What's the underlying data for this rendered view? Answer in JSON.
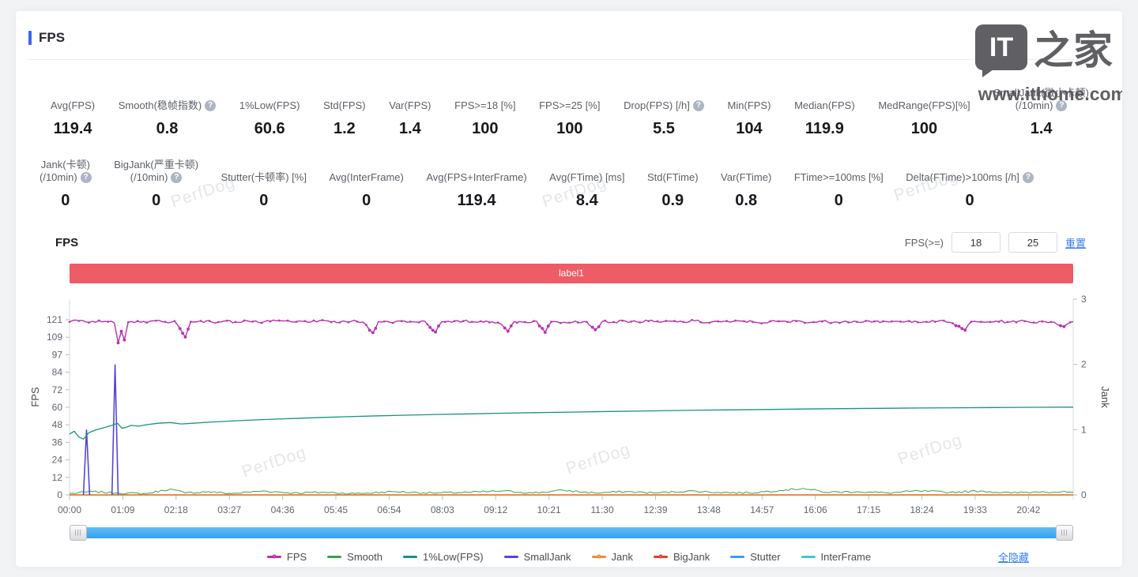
{
  "header": {
    "title": "FPS"
  },
  "stats": {
    "row1": [
      {
        "l1": "Avg(FPS)",
        "value": "119.4"
      },
      {
        "l1": "Smooth(稳帧指数)",
        "help": true,
        "value": "0.8"
      },
      {
        "l1": "1%Low(FPS)",
        "value": "60.6"
      },
      {
        "l1": "Std(FPS)",
        "value": "1.2"
      },
      {
        "l1": "Var(FPS)",
        "value": "1.4"
      },
      {
        "l1": "FPS>=18 [%]",
        "value": "100"
      },
      {
        "l1": "FPS>=25 [%]",
        "value": "100"
      },
      {
        "l1": "Drop(FPS) [/h]",
        "help": true,
        "value": "5.5"
      },
      {
        "l1": "Min(FPS)",
        "value": "104"
      },
      {
        "l1": "Median(FPS)",
        "value": "119.9"
      },
      {
        "l1": "MedRange(FPS)[%]",
        "value": "100"
      },
      {
        "l1": "SmallJank(微小卡顿)",
        "l2": "(/10min)",
        "help": true,
        "value": "1.4"
      }
    ],
    "row2": [
      {
        "l1": "Jank(卡顿)",
        "l2": "(/10min)",
        "help": true,
        "value": "0"
      },
      {
        "l1": "BigJank(严重卡顿)",
        "l2": "(/10min)",
        "help": true,
        "value": "0"
      },
      {
        "l1": "Stutter(卡顿率) [%]",
        "value": "0"
      },
      {
        "l1": "Avg(InterFrame)",
        "value": "0"
      },
      {
        "l1": "Avg(FPS+InterFrame)",
        "value": "119.4"
      },
      {
        "l1": "Avg(FTime) [ms]",
        "value": "8.4"
      },
      {
        "l1": "Std(FTime)",
        "value": "0.9"
      },
      {
        "l1": "Var(FTime)",
        "value": "0.8"
      },
      {
        "l1": "FTime>=100ms [%]",
        "value": "0"
      },
      {
        "l1": "Delta(FTime)>100ms [/h]",
        "help": true,
        "value": "0"
      }
    ]
  },
  "chart_section": {
    "title": "FPS",
    "filter_label": "FPS(>=)",
    "low": "18",
    "high": "25",
    "reset": "重置",
    "band_label": "label1",
    "band_color": "#ee5c66",
    "hide_all": "全隐藏"
  },
  "watermark": {
    "perfdog": "PerfDog",
    "site_box": "IT",
    "site_name": "之家",
    "site_url": "www.ithome.com"
  },
  "chart_data": {
    "type": "line",
    "title": "FPS",
    "x_max_seconds": 1300,
    "x_ticks": {
      "interval_seconds": 69,
      "labels": [
        "00:00",
        "01:09",
        "02:18",
        "03:27",
        "04:36",
        "05:45",
        "06:54",
        "08:03",
        "09:12",
        "10:21",
        "11:30",
        "12:39",
        "13:48",
        "14:57",
        "16:06",
        "17:15",
        "18:24",
        "19:33",
        "20:42"
      ]
    },
    "left_axis": {
      "label": "FPS",
      "min": 0,
      "max": 121,
      "ticks": [
        0,
        12,
        24,
        36,
        48,
        60,
        72,
        84,
        97,
        109,
        121
      ]
    },
    "right_axis": {
      "label": "Jank",
      "min": 0,
      "max": 3,
      "ticks": [
        0,
        1,
        2,
        3
      ]
    },
    "grid": false,
    "legend_position": "bottom",
    "series": [
      {
        "name": "Stutter",
        "color": "#3d9bf0",
        "axis": "right",
        "style": "line",
        "width": 1.2,
        "points": [
          [
            0,
            0
          ],
          [
            1300,
            0
          ]
        ]
      },
      {
        "name": "InterFrame",
        "color": "#41c7d2",
        "axis": "right",
        "style": "line",
        "width": 1.2,
        "points": [
          [
            0,
            0
          ],
          [
            1300,
            0
          ]
        ]
      },
      {
        "name": "BigJank",
        "color": "#e23c30",
        "axis": "right",
        "style": "line",
        "width": 1.2,
        "points": [
          [
            0,
            0
          ],
          [
            1300,
            0
          ]
        ]
      },
      {
        "name": "Jank",
        "color": "#f08a3e",
        "axis": "right",
        "style": "line",
        "width": 2,
        "points": [
          [
            0,
            0
          ],
          [
            1300,
            0
          ]
        ]
      },
      {
        "name": "Smooth",
        "color": "#3ea04a",
        "axis": "right",
        "style": "noisy",
        "noise": 0.015,
        "width": 1,
        "points": [
          [
            0,
            0.02
          ],
          [
            30,
            0.05
          ],
          [
            60,
            0.03
          ],
          [
            100,
            0.02
          ],
          [
            130,
            0.09
          ],
          [
            150,
            0.03
          ],
          [
            180,
            0.05
          ],
          [
            210,
            0.02
          ],
          [
            250,
            0.06
          ],
          [
            290,
            0.03
          ],
          [
            330,
            0.04
          ],
          [
            370,
            0.02
          ],
          [
            420,
            0.05
          ],
          [
            470,
            0.03
          ],
          [
            520,
            0.04
          ],
          [
            560,
            0.06
          ],
          [
            600,
            0.03
          ],
          [
            640,
            0.07
          ],
          [
            680,
            0.03
          ],
          [
            720,
            0.05
          ],
          [
            760,
            0.03
          ],
          [
            800,
            0.06
          ],
          [
            840,
            0.04
          ],
          [
            880,
            0.03
          ],
          [
            920,
            0.07
          ],
          [
            950,
            0.1
          ],
          [
            980,
            0.04
          ],
          [
            1020,
            0.05
          ],
          [
            1060,
            0.03
          ],
          [
            1100,
            0.06
          ],
          [
            1140,
            0.04
          ],
          [
            1180,
            0.06
          ],
          [
            1220,
            0.03
          ],
          [
            1260,
            0.05
          ],
          [
            1300,
            0.04
          ]
        ]
      },
      {
        "name": "SmallJank",
        "color": "#5149d6",
        "axis": "right",
        "style": "spikes",
        "width": 1.6,
        "points": [
          [
            22,
            1
          ],
          [
            59,
            2
          ]
        ]
      },
      {
        "name": "1%Low(FPS)",
        "color": "#1b9187",
        "axis": "left",
        "style": "line",
        "width": 1.3,
        "points": [
          [
            0,
            42
          ],
          [
            6,
            44
          ],
          [
            12,
            40
          ],
          [
            18,
            38.5
          ],
          [
            25,
            43
          ],
          [
            35,
            45
          ],
          [
            45,
            46.5
          ],
          [
            55,
            48
          ],
          [
            62,
            49.5
          ],
          [
            68,
            46
          ],
          [
            72,
            46.5
          ],
          [
            80,
            48
          ],
          [
            90,
            47.5
          ],
          [
            100,
            48.5
          ],
          [
            115,
            49.5
          ],
          [
            130,
            50
          ],
          [
            145,
            49
          ],
          [
            160,
            49.5
          ],
          [
            180,
            50.2
          ],
          [
            210,
            51
          ],
          [
            240,
            51.8
          ],
          [
            270,
            52.4
          ],
          [
            300,
            53
          ],
          [
            330,
            53.5
          ],
          [
            360,
            54
          ],
          [
            400,
            54.6
          ],
          [
            440,
            55.1
          ],
          [
            480,
            55.6
          ],
          [
            520,
            56
          ],
          [
            560,
            56.4
          ],
          [
            600,
            56.8
          ],
          [
            650,
            57.2
          ],
          [
            700,
            57.6
          ],
          [
            750,
            58
          ],
          [
            800,
            58.4
          ],
          [
            850,
            58.7
          ],
          [
            900,
            59
          ],
          [
            950,
            59.3
          ],
          [
            1000,
            59.6
          ],
          [
            1050,
            59.8
          ],
          [
            1100,
            60
          ],
          [
            1150,
            60.2
          ],
          [
            1200,
            60.35
          ],
          [
            1250,
            60.5
          ],
          [
            1300,
            60.6
          ]
        ]
      },
      {
        "name": "FPS",
        "color": "#ba30b0",
        "axis": "left",
        "style": "noisy-dots",
        "noise": 0.85,
        "width": 1.4,
        "points": [
          [
            0,
            119.5
          ],
          [
            12,
            120.2
          ],
          [
            25,
            119.0
          ],
          [
            38,
            120.4
          ],
          [
            50,
            119.6
          ],
          [
            58,
            118.8
          ],
          [
            63,
            105
          ],
          [
            67,
            113
          ],
          [
            71,
            107
          ],
          [
            76,
            119.2
          ],
          [
            88,
            120.1
          ],
          [
            100,
            119.0
          ],
          [
            112,
            120.3
          ],
          [
            124,
            119.5
          ],
          [
            136,
            120.0
          ],
          [
            150,
            109
          ],
          [
            157,
            119.6
          ],
          [
            170,
            120.2
          ],
          [
            185,
            119.1
          ],
          [
            200,
            120.0
          ],
          [
            215,
            119.4
          ],
          [
            230,
            120.3
          ],
          [
            245,
            119.0
          ],
          [
            260,
            119.8
          ],
          [
            275,
            120.2
          ],
          [
            290,
            119.3
          ],
          [
            305,
            120.0
          ],
          [
            320,
            119.5
          ],
          [
            335,
            120.2
          ],
          [
            350,
            119.1
          ],
          [
            365,
            119.9
          ],
          [
            380,
            119.4
          ],
          [
            393,
            112
          ],
          [
            400,
            119.7
          ],
          [
            415,
            119.2
          ],
          [
            430,
            120.1
          ],
          [
            445,
            119.5
          ],
          [
            460,
            120.0
          ],
          [
            474,
            112.5
          ],
          [
            482,
            119.6
          ],
          [
            495,
            119.2
          ],
          [
            510,
            120.0
          ],
          [
            525,
            119.4
          ],
          [
            540,
            120.1
          ],
          [
            555,
            119.0
          ],
          [
            568,
            113
          ],
          [
            576,
            119.8
          ],
          [
            590,
            119.3
          ],
          [
            605,
            120.0
          ],
          [
            616,
            112.2
          ],
          [
            624,
            119.6
          ],
          [
            640,
            119.2
          ],
          [
            655,
            120.0
          ],
          [
            670,
            119.5
          ],
          [
            681,
            114
          ],
          [
            690,
            119.8
          ],
          [
            705,
            119.3
          ],
          [
            720,
            120.1
          ],
          [
            735,
            119.5
          ],
          [
            750,
            120.0
          ],
          [
            765,
            119.2
          ],
          [
            780,
            119.9
          ],
          [
            795,
            119.4
          ],
          [
            810,
            120.2
          ],
          [
            825,
            119.0
          ],
          [
            840,
            119.8
          ],
          [
            855,
            119.3
          ],
          [
            870,
            120.1
          ],
          [
            885,
            119.5
          ],
          [
            900,
            118.9
          ],
          [
            915,
            119.9
          ],
          [
            930,
            119.4
          ],
          [
            945,
            120.2
          ],
          [
            960,
            119.1
          ],
          [
            975,
            119.8
          ],
          [
            990,
            119.3
          ],
          [
            1005,
            120.0
          ],
          [
            1020,
            119.5
          ],
          [
            1035,
            120.2
          ],
          [
            1050,
            119.0
          ],
          [
            1065,
            119.8
          ],
          [
            1080,
            119.3
          ],
          [
            1095,
            120.1
          ],
          [
            1110,
            119.5
          ],
          [
            1125,
            120.0
          ],
          [
            1140,
            119.2
          ],
          [
            1152,
            116.5
          ],
          [
            1160,
            113.8
          ],
          [
            1168,
            119.6
          ],
          [
            1185,
            119.2
          ],
          [
            1200,
            120.0
          ],
          [
            1215,
            119.4
          ],
          [
            1230,
            120.1
          ],
          [
            1245,
            119.0
          ],
          [
            1260,
            119.8
          ],
          [
            1275,
            119.3
          ],
          [
            1288,
            116.2
          ],
          [
            1300,
            119.6
          ]
        ]
      }
    ],
    "legend": [
      {
        "name": "FPS",
        "color": "#ba30b0",
        "marker": "line-dot"
      },
      {
        "name": "Smooth",
        "color": "#3ea04a",
        "marker": "line"
      },
      {
        "name": "1%Low(FPS)",
        "color": "#1b9187",
        "marker": "line"
      },
      {
        "name": "SmallJank",
        "color": "#5149d6",
        "marker": "line"
      },
      {
        "name": "Jank",
        "color": "#f08a3e",
        "marker": "line-dot"
      },
      {
        "name": "BigJank",
        "color": "#e23c30",
        "marker": "line-dot"
      },
      {
        "name": "Stutter",
        "color": "#3d9bf0",
        "marker": "line"
      },
      {
        "name": "InterFrame",
        "color": "#41c7d2",
        "marker": "line"
      }
    ]
  }
}
